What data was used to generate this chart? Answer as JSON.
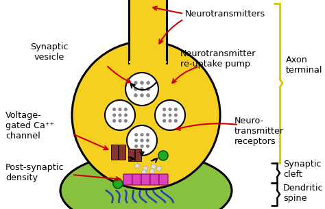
{
  "bg_color": "#ffffff",
  "yellow": "#f5d020",
  "green": "#88c040",
  "white": "#ffffff",
  "black": "#000000",
  "red": "#cc0000",
  "pink": "#dd44bb",
  "dark_red": "#883333",
  "green_dot": "#22aa22",
  "blue": "#2244cc",
  "yellow_brace": "#d4c800",
  "labels": {
    "neurotransmitters": "Neurotransmitters",
    "synaptic_vesicle": "Synaptic\nvesicle",
    "voltage_gated": "Voltage-\ngated Ca⁺⁺\nchannel",
    "reuptake": "Neurotransmitter\nre-uptake pump",
    "neuro_receptors": "Neuro-\ntransmitter\nreceptors",
    "post_synaptic": "Post-synaptic\ndensity",
    "axon_terminal": "Axon\nterminal",
    "synaptic_cleft": "Synaptic\ncleft",
    "dendritic_spine": "Dendritic\nspine"
  },
  "figsize": [
    4.74,
    3.05
  ],
  "dpi": 100
}
